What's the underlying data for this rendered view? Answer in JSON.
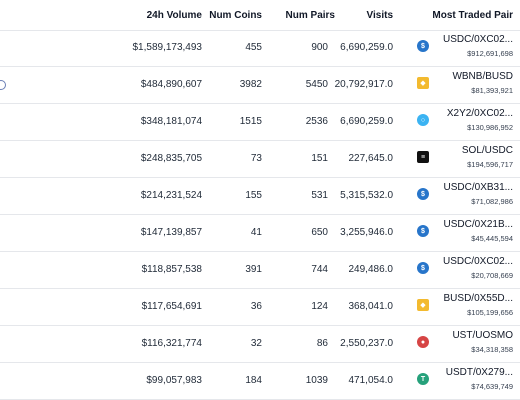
{
  "header": {
    "volume": "24h Volume",
    "coins": "Num Coins",
    "pairs": "Num Pairs",
    "visits": "Visits",
    "most": "Most Traded Pair"
  },
  "colors": {
    "usdc": "#2775ca",
    "bnb": "#f3ba2f",
    "x2y2": "#3bb3f2",
    "sol": "#111111",
    "ust": "#d64545",
    "usdt": "#26a17b"
  },
  "rows": [
    {
      "volume": "$1,589,173,493",
      "coins": "455",
      "pairs": "900",
      "visits": "6,690,259.0",
      "pair": "USDC/0XC02...",
      "pair_volume": "$912,691,698",
      "icon": "usdc-icon"
    },
    {
      "volume": "$484,890,607",
      "coins": "3982",
      "pairs": "5450",
      "visits": "20,792,917.0",
      "pair": "WBNB/BUSD",
      "pair_volume": "$81,393,921",
      "icon": "bnb-icon"
    },
    {
      "volume": "$348,181,074",
      "coins": "1515",
      "pairs": "2536",
      "visits": "6,690,259.0",
      "pair": "X2Y2/0XC02...",
      "pair_volume": "$130,986,952",
      "icon": "x2y2-icon"
    },
    {
      "volume": "$248,835,705",
      "coins": "73",
      "pairs": "151",
      "visits": "227,645.0",
      "pair": "SOL/USDC",
      "pair_volume": "$194,596,717",
      "icon": "sol-icon"
    },
    {
      "volume": "$214,231,524",
      "coins": "155",
      "pairs": "531",
      "visits": "5,315,532.0",
      "pair": "USDC/0XB31...",
      "pair_volume": "$71,082,986",
      "icon": "usdc-icon"
    },
    {
      "volume": "$147,139,857",
      "coins": "41",
      "pairs": "650",
      "visits": "3,255,946.0",
      "pair": "USDC/0X21B...",
      "pair_volume": "$45,445,594",
      "icon": "usdc-icon"
    },
    {
      "volume": "$118,857,538",
      "coins": "391",
      "pairs": "744",
      "visits": "249,486.0",
      "pair": "USDC/0XC02...",
      "pair_volume": "$20,708,669",
      "icon": "usdc-icon"
    },
    {
      "volume": "$117,654,691",
      "coins": "36",
      "pairs": "124",
      "visits": "368,041.0",
      "pair": "BUSD/0X55D...",
      "pair_volume": "$105,199,656",
      "icon": "busd-icon"
    },
    {
      "volume": "$116,321,774",
      "coins": "32",
      "pairs": "86",
      "visits": "2,550,237.0",
      "pair": "UST/UOSMO",
      "pair_volume": "$34,318,358",
      "icon": "ust-icon"
    },
    {
      "volume": "$99,057,983",
      "coins": "184",
      "pairs": "1039",
      "visits": "471,054.0",
      "pair": "USDT/0X279...",
      "pair_volume": "$74,639,749",
      "icon": "usdt-icon"
    }
  ]
}
